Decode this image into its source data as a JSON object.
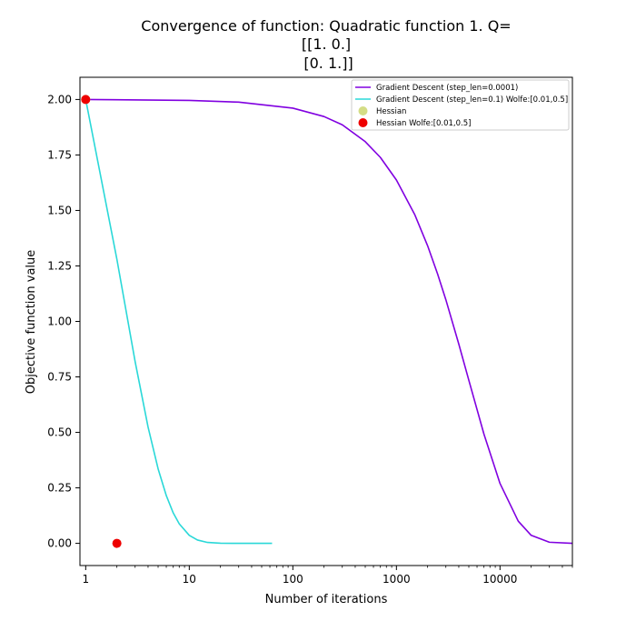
{
  "chart_data": {
    "type": "line",
    "title": [
      "Convergence of function: Quadratic function 1. Q=",
      "[[1. 0.]",
      " [0. 1.]]"
    ],
    "xlabel": "Number of iterations",
    "ylabel": "Objective function value",
    "xscale": "log",
    "xlim": [
      0.88,
      50000
    ],
    "ylim": [
      -0.1,
      2.1
    ],
    "xticks": [
      {
        "value": 1,
        "label": "1"
      },
      {
        "value": 10,
        "label": "10"
      },
      {
        "value": 100,
        "label": "100"
      },
      {
        "value": 1000,
        "label": "1000"
      },
      {
        "value": 10000,
        "label": "10000"
      }
    ],
    "yticks": [
      {
        "value": 0,
        "label": "0.00"
      },
      {
        "value": 0.25,
        "label": "0.25"
      },
      {
        "value": 0.5,
        "label": "0.50"
      },
      {
        "value": 0.75,
        "label": "0.75"
      },
      {
        "value": 1.0,
        "label": "1.00"
      },
      {
        "value": 1.25,
        "label": "1.25"
      },
      {
        "value": 1.5,
        "label": "1.50"
      },
      {
        "value": 1.75,
        "label": "1.75"
      },
      {
        "value": 2.0,
        "label": "2.00"
      }
    ],
    "grid": false,
    "legend_position": "top-right",
    "series": [
      {
        "name": "Gradient Descent (step_len=0.0001)",
        "kind": "line",
        "color": "#8000e0",
        "x": [
          1,
          10,
          30,
          100,
          200,
          300,
          500,
          700,
          1000,
          1500,
          2000,
          2500,
          3000,
          4000,
          5000,
          7000,
          10000,
          15000,
          20000,
          30000,
          50000
        ],
        "y": [
          2.0,
          1.996,
          1.988,
          1.961,
          1.923,
          1.886,
          1.81,
          1.739,
          1.637,
          1.482,
          1.341,
          1.213,
          1.098,
          0.898,
          0.735,
          0.492,
          0.27,
          0.1,
          0.036,
          0.005,
          0.0001
        ]
      },
      {
        "name": "Gradient Descent (step_len=0.1) Wolfe:[0.01,0.5]",
        "kind": "line",
        "color": "#2ad8d8",
        "x": [
          1,
          2,
          3,
          4,
          5,
          6,
          7,
          8,
          10,
          12,
          15,
          20,
          30,
          40,
          63
        ],
        "y": [
          2.0,
          1.28,
          0.819,
          0.524,
          0.336,
          0.215,
          0.137,
          0.088,
          0.036,
          0.015,
          0.004,
          0.0005,
          0.0,
          0.0,
          0.0
        ]
      },
      {
        "name": "Hessian",
        "kind": "scatter",
        "color": "#d4dd86",
        "x": [
          1
        ],
        "y": [
          2.0
        ]
      },
      {
        "name": "Hessian Wolfe:[0.01,0.5]",
        "kind": "scatter",
        "color": "#ee0000",
        "x": [
          1,
          2
        ],
        "y": [
          2.0,
          0.0
        ]
      }
    ]
  }
}
